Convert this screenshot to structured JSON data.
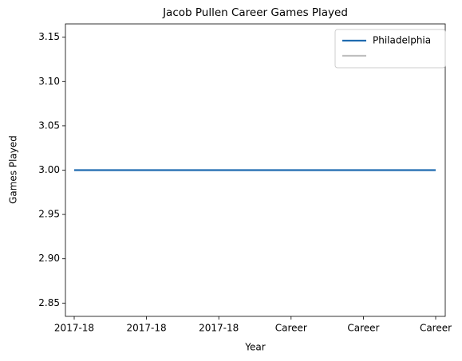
{
  "chart_data": {
    "type": "line",
    "title": "Jacob Pullen Career Games Played",
    "x_label": "Year",
    "y_label": "Games Played",
    "categories": [
      "2017-18",
      "2017-18",
      "2017-18",
      "Career",
      "Career",
      "Career"
    ],
    "series": [
      {
        "name": "Philadelphia",
        "color": "#1f6bb0",
        "values": [
          3,
          3,
          3,
          3,
          3,
          3
        ]
      },
      {
        "color": "#bfbfbf",
        "values": [
          null,
          null,
          null,
          null,
          null,
          null
        ]
      }
    ],
    "ylim": [
      2.835,
      3.165
    ],
    "yticks": [
      {
        "value": 2.85,
        "label": "2.85"
      },
      {
        "value": 2.9,
        "label": "2.90"
      },
      {
        "value": 2.95,
        "label": "2.95"
      },
      {
        "value": 3,
        "label": "3.00"
      },
      {
        "value": 3.05,
        "label": "3.05"
      },
      {
        "value": 3.1,
        "label": "3.10"
      },
      {
        "value": 3.15,
        "label": "3.15"
      }
    ],
    "legend": "upper right",
    "grid": false
  }
}
